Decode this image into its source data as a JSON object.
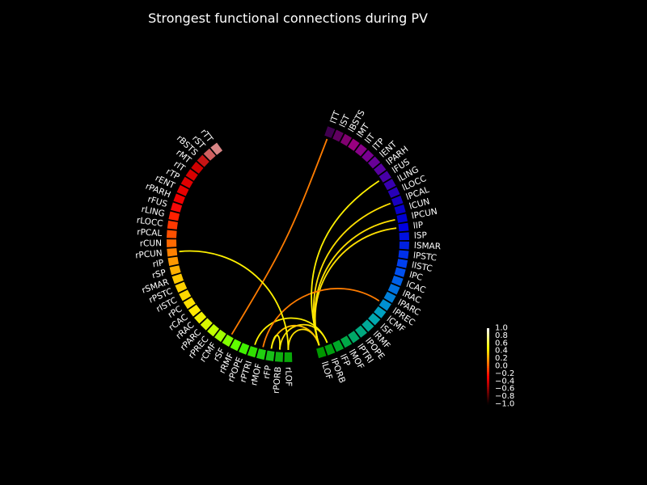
{
  "chart_data": {
    "type": "connectivity-circle",
    "title": "Strongest functional connections during PV",
    "colormap": "hot",
    "vmin": -1.0,
    "vmax": 1.0,
    "colorbar_ticks": [
      "1.0",
      "0.8",
      "0.6",
      "0.4",
      "0.2",
      "0.0",
      "−0.2",
      "−0.4",
      "−0.6",
      "−0.8",
      "−1.0"
    ],
    "colorbar_tick_values": [
      1.0,
      0.8,
      0.6,
      0.4,
      0.2,
      0.0,
      -0.2,
      -0.4,
      -0.6,
      -0.8,
      -1.0
    ],
    "node_order_clockwise_from_top": [
      "lTT",
      "lST",
      "lBSTS",
      "lMT",
      "lIT",
      "lTP",
      "lENT",
      "lPARH",
      "lFUS",
      "lLING",
      "lLOCC",
      "lPCAL",
      "lCUN",
      "lPCUN",
      "lIP",
      "lSP",
      "lSMAR",
      "lPSTC",
      "lISTC",
      "lPC",
      "lCAC",
      "lRAC",
      "lPARC",
      "lPREC",
      "lCMF",
      "lSF",
      "lRMF",
      "lPOPE",
      "lPTRI",
      "lMOF",
      "lFP",
      "lPORB",
      "lLOF",
      "rLOF",
      "rPORB",
      "rFP",
      "rMOF",
      "rPTRI",
      "rPOPE",
      "rRMF",
      "rSF",
      "rCMF",
      "rPREC",
      "rPARC",
      "rRAC",
      "rCAC",
      "rPC",
      "rISTC",
      "rPSTC",
      "rSMAR",
      "rSP",
      "rIP",
      "rPCUN",
      "rCUN",
      "rPCAL",
      "rLOCC",
      "rLING",
      "rFUS",
      "rPARH",
      "rENT",
      "rTP",
      "rIT",
      "rMT",
      "rBSTS",
      "rST",
      "rTT"
    ],
    "node_colors": [
      "#d88585",
      "#d06060",
      "#c81414",
      "#d00000",
      "#d80000",
      "#e00000",
      "#e80000",
      "#f00000",
      "#f80808",
      "#ff2000",
      "#ff3800",
      "#ff5000",
      "#ff6800",
      "#ff8000",
      "#ff9800",
      "#ffb000",
      "#ffc800",
      "#ffd000",
      "#ffd800",
      "#ffe000",
      "#ffe800",
      "#f0f000",
      "#d8f800",
      "#c0ff00",
      "#a0ff00",
      "#80ff00",
      "#60ff00",
      "#40f000",
      "#30e000",
      "#20d010",
      "#18c018",
      "#10b010",
      "#08a808",
      "#009800",
      "#00a010",
      "#00a828",
      "#00a848",
      "#00a868",
      "#00a880",
      "#00a898",
      "#00a8b0",
      "#00a0c0",
      "#0090d0",
      "#0080d8",
      "#0070e0",
      "#0060e8",
      "#0050f0",
      "#0040f0",
      "#0030e8",
      "#0020e0",
      "#0010e0",
      "#0000e0",
      "#0000d0",
      "#0800c8",
      "#1800c0",
      "#2800b8",
      "#3800b0",
      "#4800a8",
      "#5800a0",
      "#680098",
      "#780090",
      "#880088",
      "#980080",
      "#800070",
      "#600060",
      "#400050"
    ],
    "node_colors_note": "listed in reverse order of node_order_clockwise_from_top (index 0 = rTT ... index 65 = lTT)",
    "connections": [
      {
        "from": "lTT",
        "to": "rSF",
        "value": 0.1
      },
      {
        "from": "lLOF",
        "to": "lPCAL",
        "value": 0.4
      },
      {
        "from": "lLOF",
        "to": "lPCUN",
        "value": 0.4
      },
      {
        "from": "lLOF",
        "to": "lIP",
        "value": 0.4
      },
      {
        "from": "lPORB",
        "to": "rPORB",
        "value": 0.4
      },
      {
        "from": "lLOF",
        "to": "rLOF",
        "value": 0.4
      },
      {
        "from": "lPORB",
        "to": "rPTRI",
        "value": 0.45
      },
      {
        "from": "lLOF",
        "to": "rFP",
        "value": 0.3
      },
      {
        "from": "lPREC",
        "to": "rMOF",
        "value": 0.1
      },
      {
        "from": "lLOF",
        "to": "lFUS",
        "value": 0.45
      },
      {
        "from": "rLOF",
        "to": "rPCUN",
        "value": 0.45
      },
      {
        "from": "rPORB",
        "to": "rFP",
        "value": 0.45
      }
    ]
  }
}
